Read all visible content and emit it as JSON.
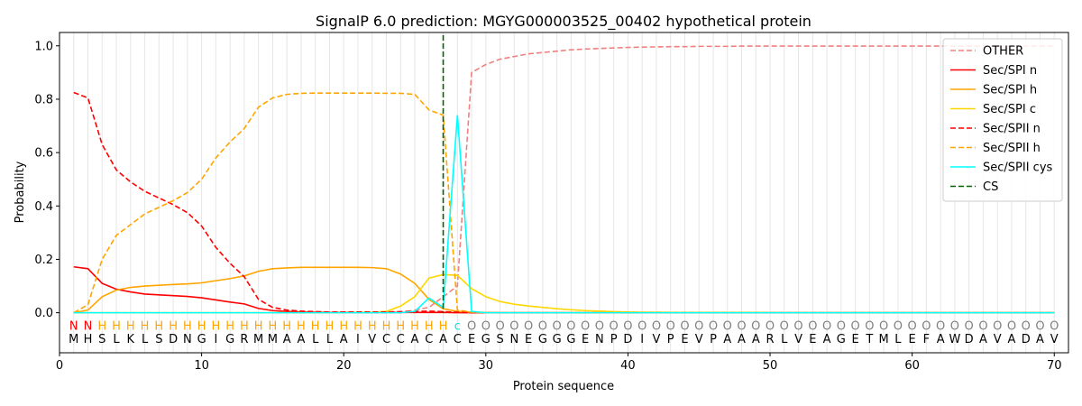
{
  "chart_data": {
    "type": "line",
    "title": "SignalP 6.0 prediction: MGYG000003525_00402 hypothetical protein",
    "xlabel": "Protein sequence",
    "ylabel": "Probability",
    "xlim": [
      0,
      71
    ],
    "ylim": [
      -0.15,
      1.05
    ],
    "xticks": [
      0,
      10,
      20,
      30,
      40,
      50,
      60,
      70
    ],
    "yticks": [
      0.0,
      0.2,
      0.4,
      0.6,
      0.8,
      1.0
    ],
    "grid": "vertical lines at each residue",
    "legend_position": "top-right",
    "sequence": [
      "M",
      "H",
      "S",
      "L",
      "K",
      "L",
      "S",
      "D",
      "N",
      "G",
      "I",
      "G",
      "R",
      "M",
      "M",
      "A",
      "A",
      "L",
      "L",
      "A",
      "I",
      "V",
      "C",
      "C",
      "A",
      "C",
      "A",
      "C",
      "E",
      "G",
      "S",
      "N",
      "E",
      "G",
      "G",
      "G",
      "E",
      "N",
      "P",
      "D",
      "I",
      "V",
      "P",
      "E",
      "V",
      "P",
      "A",
      "A",
      "A",
      "R",
      "L",
      "V",
      "E",
      "A",
      "G",
      "E",
      "T",
      "M",
      "L",
      "E",
      "F",
      "A",
      "W",
      "D",
      "A",
      "V",
      "A",
      "D",
      "A",
      "V"
    ],
    "annotation": [
      "N",
      "N",
      "H",
      "H",
      "H",
      "H",
      "H",
      "H",
      "H",
      "H",
      "H",
      "H",
      "H",
      "H",
      "H",
      "H",
      "H",
      "H",
      "H",
      "H",
      "H",
      "H",
      "H",
      "H",
      "H",
      "H",
      "H",
      "c",
      "O",
      "O",
      "O",
      "O",
      "O",
      "O",
      "O",
      "O",
      "O",
      "O",
      "O",
      "O",
      "O",
      "O",
      "O",
      "O",
      "O",
      "O",
      "O",
      "O",
      "O",
      "O",
      "O",
      "O",
      "O",
      "O",
      "O",
      "O",
      "O",
      "O",
      "O",
      "O",
      "O",
      "O",
      "O",
      "O",
      "O",
      "O",
      "O",
      "O",
      "O",
      "O"
    ],
    "annotation_colors": {
      "N": "#ff0000",
      "H": "#ffa500",
      "c": "#00e5e5",
      "O": "#808080"
    },
    "cleavage_site": 27,
    "series": [
      {
        "name": "OTHER",
        "color": "#f08080",
        "dash": "dashed",
        "values": [
          0.0,
          0.0,
          0.0,
          0.0,
          0.0,
          0.0,
          0.0,
          0.0,
          0.0,
          0.0,
          0.0,
          0.0,
          0.0,
          0.0,
          0.0,
          0.0,
          0.0,
          0.0,
          0.0,
          0.0,
          0.0,
          0.0,
          0.0,
          0.0,
          0.01,
          0.02,
          0.06,
          0.1,
          0.9,
          0.93,
          0.95,
          0.96,
          0.97,
          0.975,
          0.98,
          0.985,
          0.988,
          0.99,
          0.992,
          0.994,
          0.995,
          0.996,
          0.997,
          0.997,
          0.998,
          0.998,
          0.998,
          0.999,
          0.999,
          0.999,
          0.999,
          0.999,
          0.999,
          0.999,
          0.999,
          0.999,
          0.999,
          0.999,
          0.999,
          0.999,
          0.999,
          0.999,
          0.999,
          0.999,
          0.999,
          0.999,
          0.999,
          0.999,
          0.999,
          0.999
        ]
      },
      {
        "name": "Sec/SPI n",
        "color": "#ff0000",
        "dash": "solid",
        "values": [
          0.172,
          0.165,
          0.11,
          0.088,
          0.078,
          0.07,
          0.067,
          0.064,
          0.061,
          0.056,
          0.048,
          0.04,
          0.033,
          0.016,
          0.008,
          0.005,
          0.003,
          0.002,
          0.001,
          0.001,
          0.001,
          0.001,
          0.001,
          0.001,
          0.001,
          0.001,
          0.001,
          0.0,
          0.0,
          0.0,
          0.0,
          0.0,
          0.0,
          0.0,
          0.0,
          0.0,
          0.0,
          0.0,
          0.0,
          0.0,
          0.0,
          0.0,
          0.0,
          0.0,
          0.0,
          0.0,
          0.0,
          0.0,
          0.0,
          0.0,
          0.0,
          0.0,
          0.0,
          0.0,
          0.0,
          0.0,
          0.0,
          0.0,
          0.0,
          0.0,
          0.0,
          0.0,
          0.0,
          0.0,
          0.0,
          0.0,
          0.0,
          0.0,
          0.0,
          0.0
        ]
      },
      {
        "name": "Sec/SPI h",
        "color": "#ffa500",
        "dash": "solid",
        "values": [
          0.0,
          0.01,
          0.06,
          0.085,
          0.095,
          0.1,
          0.103,
          0.106,
          0.108,
          0.112,
          0.12,
          0.128,
          0.138,
          0.155,
          0.165,
          0.168,
          0.17,
          0.17,
          0.17,
          0.17,
          0.17,
          0.169,
          0.165,
          0.145,
          0.11,
          0.05,
          0.015,
          0.005,
          0.002,
          0.001,
          0.0,
          0.0,
          0.0,
          0.0,
          0.0,
          0.0,
          0.0,
          0.0,
          0.0,
          0.0,
          0.0,
          0.0,
          0.0,
          0.0,
          0.0,
          0.0,
          0.0,
          0.0,
          0.0,
          0.0,
          0.0,
          0.0,
          0.0,
          0.0,
          0.0,
          0.0,
          0.0,
          0.0,
          0.0,
          0.0,
          0.0,
          0.0,
          0.0,
          0.0,
          0.0,
          0.0,
          0.0,
          0.0,
          0.0,
          0.0
        ]
      },
      {
        "name": "Sec/SPI c",
        "color": "#ffd700",
        "dash": "solid",
        "values": [
          0.0,
          0.0,
          0.0,
          0.0,
          0.0,
          0.0,
          0.0,
          0.0,
          0.0,
          0.0,
          0.0,
          0.0,
          0.0,
          0.0,
          0.0,
          0.0,
          0.0,
          0.0,
          0.0,
          0.0,
          0.001,
          0.002,
          0.005,
          0.025,
          0.06,
          0.13,
          0.143,
          0.14,
          0.09,
          0.06,
          0.042,
          0.032,
          0.025,
          0.02,
          0.015,
          0.011,
          0.008,
          0.006,
          0.004,
          0.003,
          0.002,
          0.002,
          0.001,
          0.001,
          0.001,
          0.001,
          0.001,
          0.001,
          0.001,
          0.0,
          0.0,
          0.0,
          0.0,
          0.0,
          0.0,
          0.0,
          0.0,
          0.0,
          0.0,
          0.0,
          0.0,
          0.0,
          0.0,
          0.0,
          0.0,
          0.0,
          0.0,
          0.0,
          0.0,
          0.0
        ]
      },
      {
        "name": "Sec/SPII n",
        "color": "#ff0000",
        "dash": "dashed",
        "values": [
          0.825,
          0.805,
          0.63,
          0.535,
          0.49,
          0.455,
          0.43,
          0.405,
          0.375,
          0.325,
          0.245,
          0.185,
          0.135,
          0.05,
          0.02,
          0.01,
          0.006,
          0.004,
          0.003,
          0.003,
          0.003,
          0.003,
          0.003,
          0.004,
          0.005,
          0.006,
          0.004,
          0.002,
          0.0,
          0.0,
          0.0,
          0.0,
          0.0,
          0.0,
          0.0,
          0.0,
          0.0,
          0.0,
          0.0,
          0.0,
          0.0,
          0.0,
          0.0,
          0.0,
          0.0,
          0.0,
          0.0,
          0.0,
          0.0,
          0.0,
          0.0,
          0.0,
          0.0,
          0.0,
          0.0,
          0.0,
          0.0,
          0.0,
          0.0,
          0.0,
          0.0,
          0.0,
          0.0,
          0.0,
          0.0,
          0.0,
          0.0,
          0.0,
          0.0,
          0.0
        ]
      },
      {
        "name": "Sec/SPII h",
        "color": "#ffa500",
        "dash": "dashed",
        "values": [
          0.0,
          0.03,
          0.2,
          0.29,
          0.33,
          0.37,
          0.395,
          0.42,
          0.45,
          0.5,
          0.58,
          0.64,
          0.69,
          0.77,
          0.805,
          0.818,
          0.822,
          0.823,
          0.823,
          0.823,
          0.823,
          0.823,
          0.822,
          0.822,
          0.818,
          0.76,
          0.74,
          0.01,
          0.002,
          0.0,
          0.0,
          0.0,
          0.0,
          0.0,
          0.0,
          0.0,
          0.0,
          0.0,
          0.0,
          0.0,
          0.0,
          0.0,
          0.0,
          0.0,
          0.0,
          0.0,
          0.0,
          0.0,
          0.0,
          0.0,
          0.0,
          0.0,
          0.0,
          0.0,
          0.0,
          0.0,
          0.0,
          0.0,
          0.0,
          0.0,
          0.0,
          0.0,
          0.0,
          0.0,
          0.0,
          0.0,
          0.0,
          0.0,
          0.0,
          0.0
        ]
      },
      {
        "name": "Sec/SPII cys",
        "color": "#00ffff",
        "dash": "solid",
        "values": [
          0.0,
          0.0,
          0.0,
          0.0,
          0.0,
          0.0,
          0.0,
          0.0,
          0.0,
          0.0,
          0.0,
          0.0,
          0.0,
          0.0,
          0.0,
          0.0,
          0.0,
          0.0,
          0.0,
          0.0,
          0.0,
          0.0,
          0.0,
          0.0,
          0.005,
          0.055,
          0.02,
          0.74,
          0.005,
          0.0,
          0.0,
          0.0,
          0.0,
          0.0,
          0.0,
          0.0,
          0.0,
          0.0,
          0.0,
          0.0,
          0.0,
          0.0,
          0.0,
          0.0,
          0.0,
          0.0,
          0.0,
          0.0,
          0.0,
          0.0,
          0.0,
          0.0,
          0.0,
          0.0,
          0.0,
          0.0,
          0.0,
          0.0,
          0.0,
          0.0,
          0.0,
          0.0,
          0.0,
          0.0,
          0.0,
          0.0,
          0.0,
          0.0,
          0.0,
          0.0
        ]
      }
    ],
    "cs_legend": {
      "name": "CS",
      "color": "#006400",
      "dash": "dashed"
    }
  }
}
